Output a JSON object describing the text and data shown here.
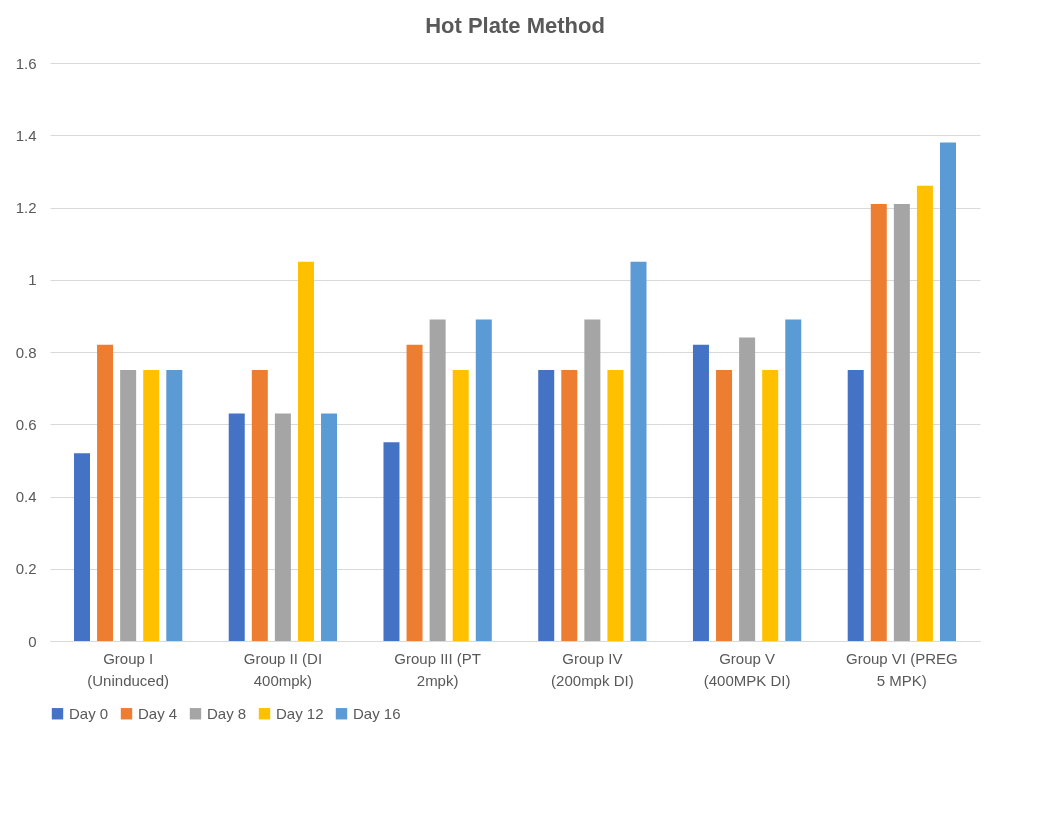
{
  "chart_data": {
    "type": "bar",
    "title": "Hot Plate Method",
    "categories": [
      "Group I (Uninduced)",
      "Group II (DI 400mpk)",
      "Group III (PT 2mpk)",
      "Group IV (200mpk DI)",
      "Group V (400MPK DI)",
      "Group VI (PREG 5 MPK)"
    ],
    "series": [
      {
        "name": "Day 0",
        "color": "#4472c4",
        "values": [
          0.52,
          0.63,
          0.55,
          0.75,
          0.82,
          0.75
        ]
      },
      {
        "name": "Day 4",
        "color": "#ed7d31",
        "values": [
          0.82,
          0.75,
          0.82,
          0.75,
          0.75,
          1.21
        ]
      },
      {
        "name": "Day 8",
        "color": "#a5a5a5",
        "values": [
          0.75,
          0.63,
          0.89,
          0.89,
          0.84,
          1.21
        ]
      },
      {
        "name": "Day 12",
        "color": "#ffc000",
        "values": [
          0.75,
          1.05,
          0.75,
          0.75,
          0.75,
          1.26
        ]
      },
      {
        "name": "Day 16",
        "color": "#5b9bd5",
        "values": [
          0.75,
          0.63,
          0.89,
          1.05,
          0.89,
          1.38
        ]
      }
    ],
    "ylim": [
      0,
      1.6
    ],
    "yticks": [
      0,
      0.2,
      0.4,
      0.6,
      0.8,
      1,
      1.2,
      1.4,
      1.6
    ],
    "grid": "y",
    "legend": "bottom"
  }
}
